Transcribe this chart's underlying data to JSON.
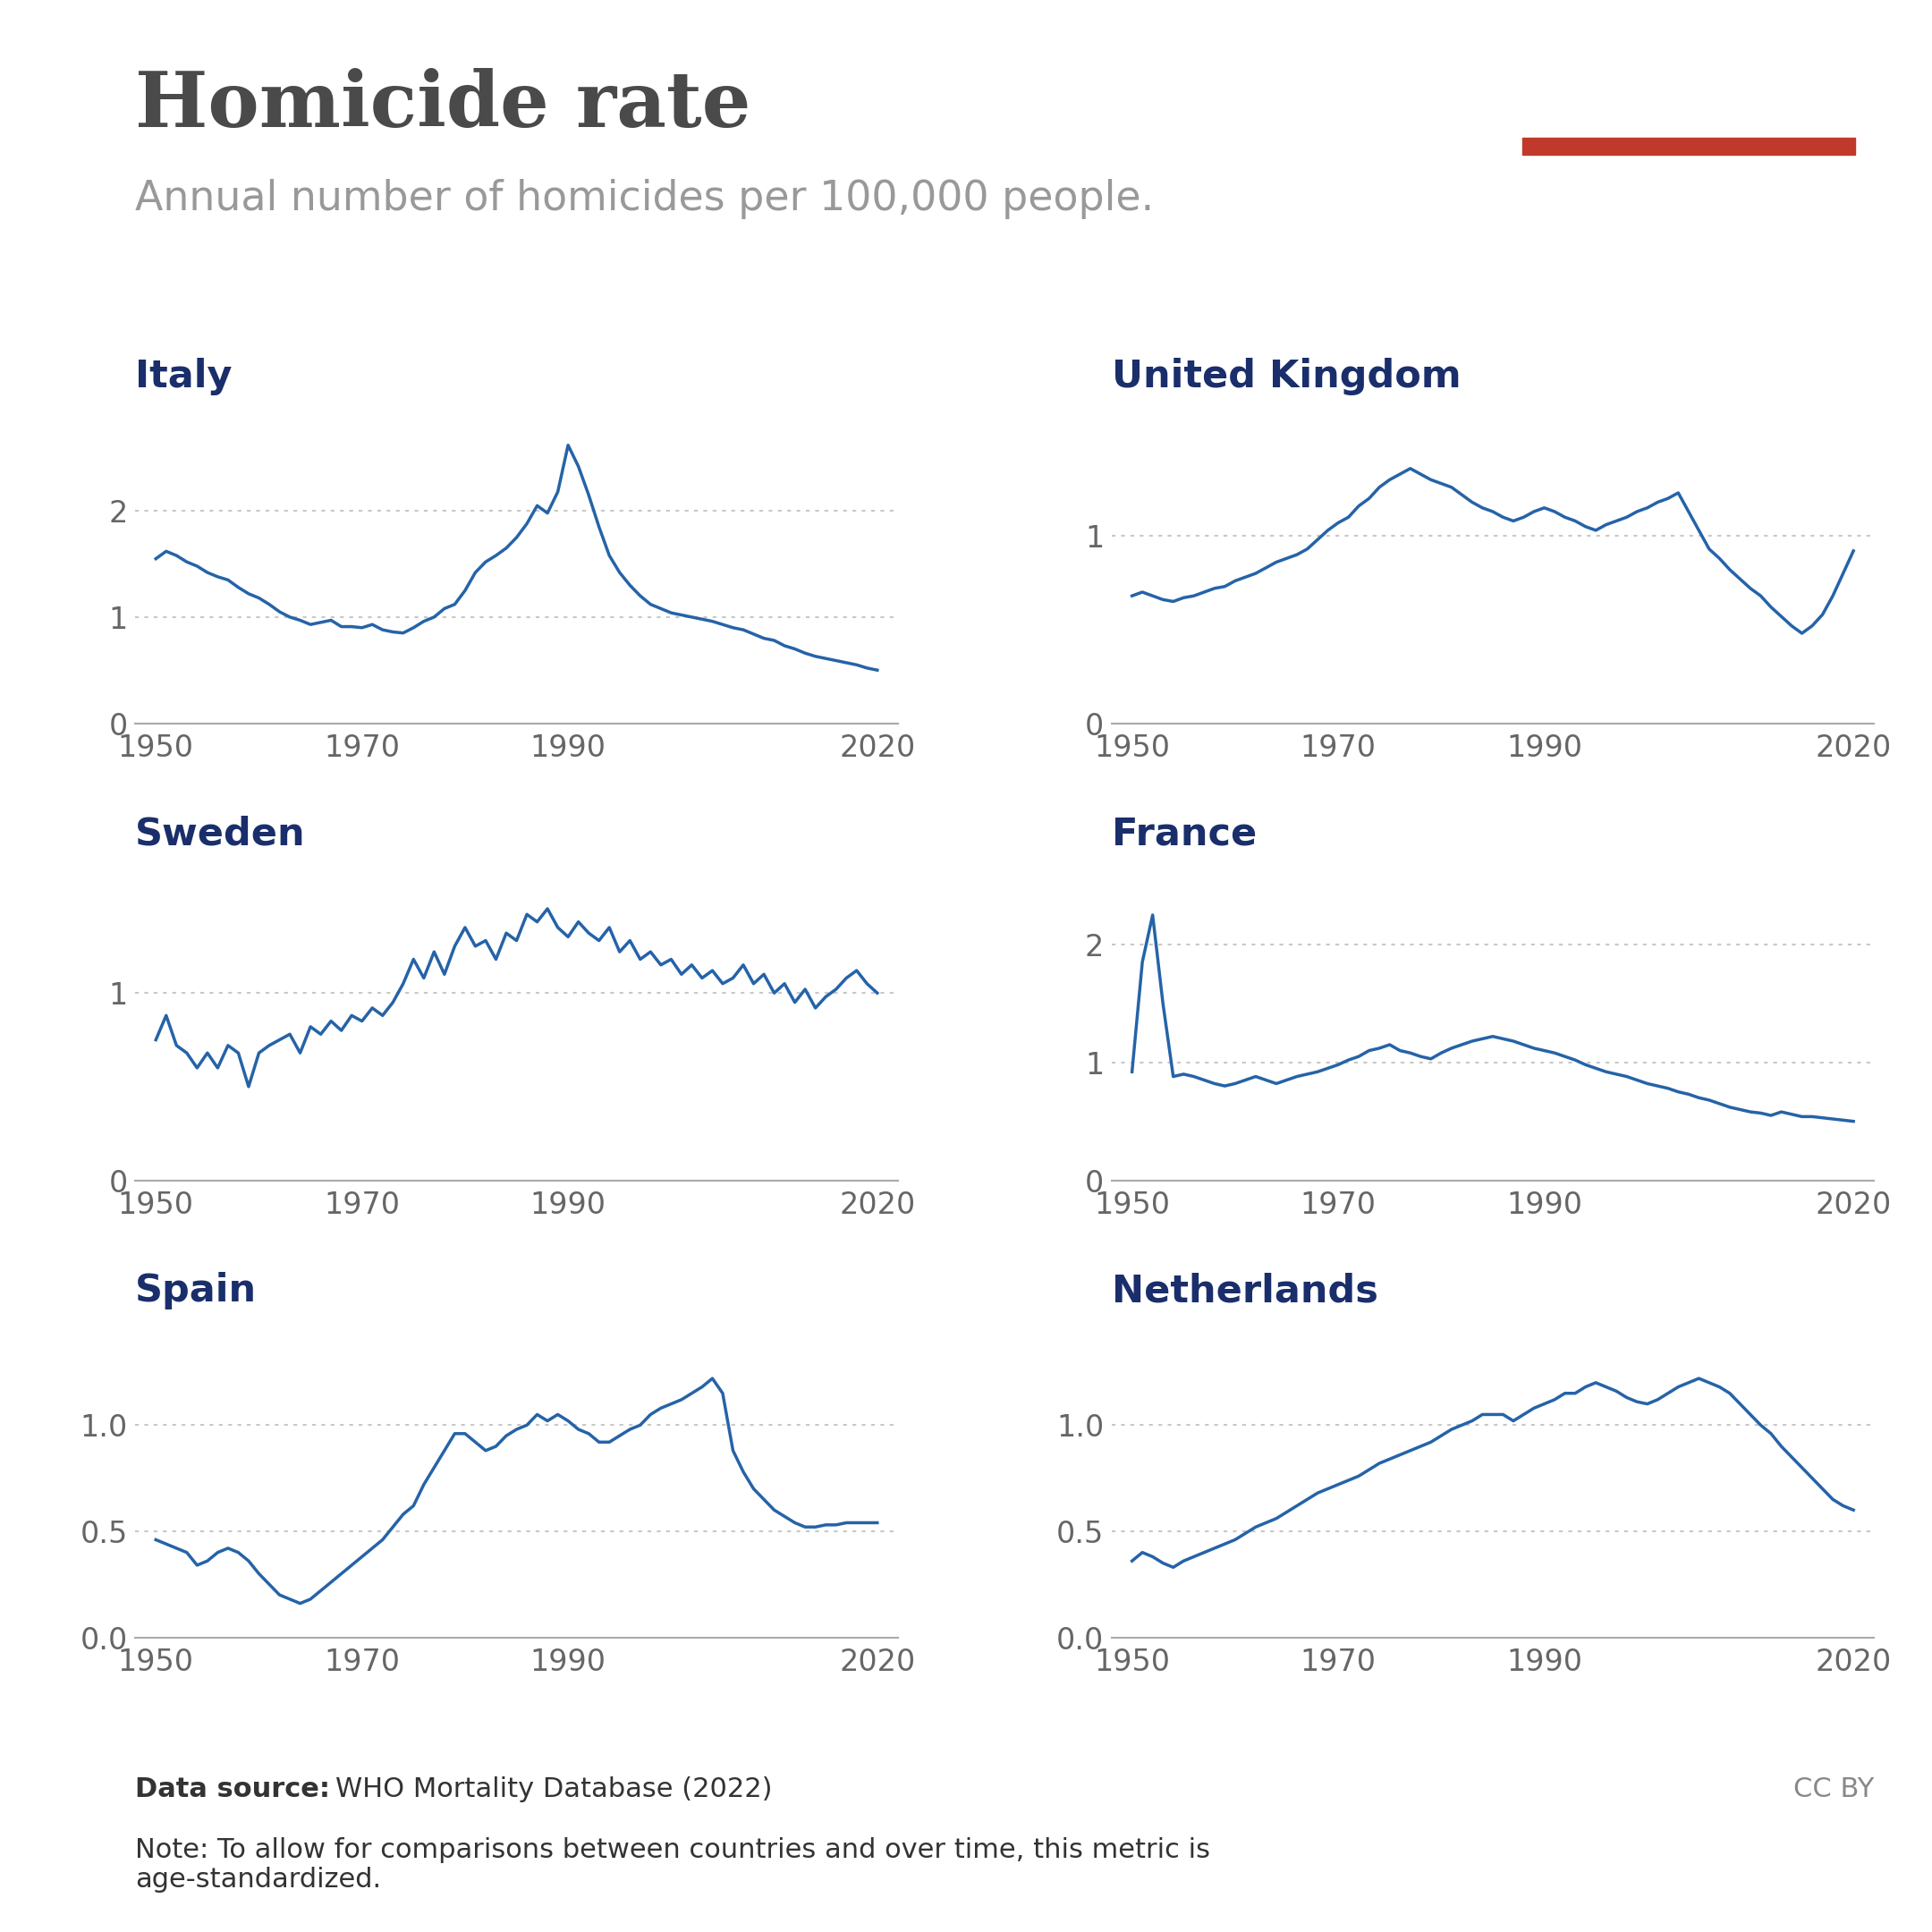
{
  "title": "Homicide rate",
  "subtitle": "Annual number of homicides per 100,000 people.",
  "line_color": "#2563a8",
  "background_color": "#ffffff",
  "axis_color": "#aaaaaa",
  "grid_color": "#c8c8c8",
  "title_color": "#4a4a4a",
  "subtitle_color": "#999999",
  "country_title_color": "#1a2e6b",
  "tick_color": "#666666",
  "footer_ds_bold": "Data source: ",
  "footer_ds_normal": "WHO Mortality Database (2022)",
  "note_text": "Note: To allow for comparisons between countries and over time, this metric is\nage-standardized.",
  "cc_text": "CC BY",
  "Italy": {
    "years": [
      1950,
      1951,
      1952,
      1953,
      1954,
      1955,
      1956,
      1957,
      1958,
      1959,
      1960,
      1961,
      1962,
      1963,
      1964,
      1965,
      1966,
      1967,
      1968,
      1969,
      1970,
      1971,
      1972,
      1973,
      1974,
      1975,
      1976,
      1977,
      1978,
      1979,
      1980,
      1981,
      1982,
      1983,
      1984,
      1985,
      1986,
      1987,
      1988,
      1989,
      1990,
      1991,
      1992,
      1993,
      1994,
      1995,
      1996,
      1997,
      1998,
      1999,
      2000,
      2001,
      2002,
      2003,
      2004,
      2005,
      2006,
      2007,
      2008,
      2009,
      2010,
      2011,
      2012,
      2013,
      2014,
      2015,
      2016,
      2017,
      2018,
      2019,
      2020
    ],
    "values": [
      1.55,
      1.62,
      1.58,
      1.52,
      1.48,
      1.42,
      1.38,
      1.35,
      1.28,
      1.22,
      1.18,
      1.12,
      1.05,
      1.0,
      0.97,
      0.93,
      0.95,
      0.97,
      0.91,
      0.91,
      0.9,
      0.93,
      0.88,
      0.86,
      0.85,
      0.9,
      0.96,
      1.0,
      1.08,
      1.12,
      1.25,
      1.42,
      1.52,
      1.58,
      1.65,
      1.75,
      1.88,
      2.05,
      1.98,
      2.18,
      2.62,
      2.42,
      2.15,
      1.85,
      1.58,
      1.42,
      1.3,
      1.2,
      1.12,
      1.08,
      1.04,
      1.02,
      1.0,
      0.98,
      0.96,
      0.93,
      0.9,
      0.88,
      0.84,
      0.8,
      0.78,
      0.73,
      0.7,
      0.66,
      0.63,
      0.61,
      0.59,
      0.57,
      0.55,
      0.52,
      0.5
    ],
    "yticks": [
      0,
      1,
      2
    ],
    "ylim": [
      0,
      3.0
    ]
  },
  "United Kingdom": {
    "years": [
      1950,
      1951,
      1952,
      1953,
      1954,
      1955,
      1956,
      1957,
      1958,
      1959,
      1960,
      1961,
      1962,
      1963,
      1964,
      1965,
      1966,
      1967,
      1968,
      1969,
      1970,
      1971,
      1972,
      1973,
      1974,
      1975,
      1976,
      1977,
      1978,
      1979,
      1980,
      1981,
      1982,
      1983,
      1984,
      1985,
      1986,
      1987,
      1988,
      1989,
      1990,
      1991,
      1992,
      1993,
      1994,
      1995,
      1996,
      1997,
      1998,
      1999,
      2000,
      2001,
      2002,
      2003,
      2004,
      2005,
      2006,
      2007,
      2008,
      2009,
      2010,
      2011,
      2012,
      2013,
      2014,
      2015,
      2016,
      2017,
      2018,
      2019,
      2020
    ],
    "values": [
      0.68,
      0.7,
      0.68,
      0.66,
      0.65,
      0.67,
      0.68,
      0.7,
      0.72,
      0.73,
      0.76,
      0.78,
      0.8,
      0.83,
      0.86,
      0.88,
      0.9,
      0.93,
      0.98,
      1.03,
      1.07,
      1.1,
      1.16,
      1.2,
      1.26,
      1.3,
      1.33,
      1.36,
      1.33,
      1.3,
      1.28,
      1.26,
      1.22,
      1.18,
      1.15,
      1.13,
      1.1,
      1.08,
      1.1,
      1.13,
      1.15,
      1.13,
      1.1,
      1.08,
      1.05,
      1.03,
      1.06,
      1.08,
      1.1,
      1.13,
      1.15,
      1.18,
      1.2,
      1.23,
      1.13,
      1.03,
      0.93,
      0.88,
      0.82,
      0.77,
      0.72,
      0.68,
      0.62,
      0.57,
      0.52,
      0.48,
      0.52,
      0.58,
      0.68,
      0.8,
      0.92
    ],
    "yticks": [
      0,
      1
    ],
    "ylim": [
      0,
      1.7
    ]
  },
  "Sweden": {
    "years": [
      1950,
      1951,
      1952,
      1953,
      1954,
      1955,
      1956,
      1957,
      1958,
      1959,
      1960,
      1961,
      1962,
      1963,
      1964,
      1965,
      1966,
      1967,
      1968,
      1969,
      1970,
      1971,
      1972,
      1973,
      1974,
      1975,
      1976,
      1977,
      1978,
      1979,
      1980,
      1981,
      1982,
      1983,
      1984,
      1985,
      1986,
      1987,
      1988,
      1989,
      1990,
      1991,
      1992,
      1993,
      1994,
      1995,
      1996,
      1997,
      1998,
      1999,
      2000,
      2001,
      2002,
      2003,
      2004,
      2005,
      2006,
      2007,
      2008,
      2009,
      2010,
      2011,
      2012,
      2013,
      2014,
      2015,
      2016,
      2017,
      2018,
      2019,
      2020
    ],
    "values": [
      0.75,
      0.88,
      0.72,
      0.68,
      0.6,
      0.68,
      0.6,
      0.72,
      0.68,
      0.5,
      0.68,
      0.72,
      0.75,
      0.78,
      0.68,
      0.82,
      0.78,
      0.85,
      0.8,
      0.88,
      0.85,
      0.92,
      0.88,
      0.95,
      1.05,
      1.18,
      1.08,
      1.22,
      1.1,
      1.25,
      1.35,
      1.25,
      1.28,
      1.18,
      1.32,
      1.28,
      1.42,
      1.38,
      1.45,
      1.35,
      1.3,
      1.38,
      1.32,
      1.28,
      1.35,
      1.22,
      1.28,
      1.18,
      1.22,
      1.15,
      1.18,
      1.1,
      1.15,
      1.08,
      1.12,
      1.05,
      1.08,
      1.15,
      1.05,
      1.1,
      1.0,
      1.05,
      0.95,
      1.02,
      0.92,
      0.98,
      1.02,
      1.08,
      1.12,
      1.05,
      1.0
    ],
    "yticks": [
      0,
      1
    ],
    "ylim": [
      0,
      1.7
    ]
  },
  "France": {
    "years": [
      1950,
      1951,
      1952,
      1953,
      1954,
      1955,
      1956,
      1957,
      1958,
      1959,
      1960,
      1961,
      1962,
      1963,
      1964,
      1965,
      1966,
      1967,
      1968,
      1969,
      1970,
      1971,
      1972,
      1973,
      1974,
      1975,
      1976,
      1977,
      1978,
      1979,
      1980,
      1981,
      1982,
      1983,
      1984,
      1985,
      1986,
      1987,
      1988,
      1989,
      1990,
      1991,
      1992,
      1993,
      1994,
      1995,
      1996,
      1997,
      1998,
      1999,
      2000,
      2001,
      2002,
      2003,
      2004,
      2005,
      2006,
      2007,
      2008,
      2009,
      2010,
      2011,
      2012,
      2013,
      2014,
      2015,
      2016,
      2017,
      2018,
      2019,
      2020
    ],
    "values": [
      0.92,
      1.85,
      2.25,
      1.5,
      0.88,
      0.9,
      0.88,
      0.85,
      0.82,
      0.8,
      0.82,
      0.85,
      0.88,
      0.85,
      0.82,
      0.85,
      0.88,
      0.9,
      0.92,
      0.95,
      0.98,
      1.02,
      1.05,
      1.1,
      1.12,
      1.15,
      1.1,
      1.08,
      1.05,
      1.03,
      1.08,
      1.12,
      1.15,
      1.18,
      1.2,
      1.22,
      1.2,
      1.18,
      1.15,
      1.12,
      1.1,
      1.08,
      1.05,
      1.02,
      0.98,
      0.95,
      0.92,
      0.9,
      0.88,
      0.85,
      0.82,
      0.8,
      0.78,
      0.75,
      0.73,
      0.7,
      0.68,
      0.65,
      0.62,
      0.6,
      0.58,
      0.57,
      0.55,
      0.58,
      0.56,
      0.54,
      0.54,
      0.53,
      0.52,
      0.51,
      0.5
    ],
    "yticks": [
      0,
      1,
      2
    ],
    "ylim": [
      0,
      2.7
    ]
  },
  "Spain": {
    "years": [
      1950,
      1951,
      1952,
      1953,
      1954,
      1955,
      1956,
      1957,
      1958,
      1959,
      1960,
      1961,
      1962,
      1963,
      1964,
      1965,
      1966,
      1967,
      1968,
      1969,
      1970,
      1971,
      1972,
      1973,
      1974,
      1975,
      1976,
      1977,
      1978,
      1979,
      1980,
      1981,
      1982,
      1983,
      1984,
      1985,
      1986,
      1987,
      1988,
      1989,
      1990,
      1991,
      1992,
      1993,
      1994,
      1995,
      1996,
      1997,
      1998,
      1999,
      2000,
      2001,
      2002,
      2003,
      2004,
      2005,
      2006,
      2007,
      2008,
      2009,
      2010,
      2011,
      2012,
      2013,
      2014,
      2015,
      2016,
      2017,
      2018,
      2019,
      2020
    ],
    "values": [
      0.46,
      0.44,
      0.42,
      0.4,
      0.34,
      0.36,
      0.4,
      0.42,
      0.4,
      0.36,
      0.3,
      0.25,
      0.2,
      0.18,
      0.16,
      0.18,
      0.22,
      0.26,
      0.3,
      0.34,
      0.38,
      0.42,
      0.46,
      0.52,
      0.58,
      0.62,
      0.72,
      0.8,
      0.88,
      0.96,
      0.96,
      0.92,
      0.88,
      0.9,
      0.95,
      0.98,
      1.0,
      1.05,
      1.02,
      1.05,
      1.02,
      0.98,
      0.96,
      0.92,
      0.92,
      0.95,
      0.98,
      1.0,
      1.05,
      1.08,
      1.1,
      1.12,
      1.15,
      1.18,
      1.22,
      1.15,
      0.88,
      0.78,
      0.7,
      0.65,
      0.6,
      0.57,
      0.54,
      0.52,
      0.52,
      0.53,
      0.53,
      0.54,
      0.54,
      0.54,
      0.54
    ],
    "yticks": [
      0,
      0.5,
      1
    ],
    "ylim": [
      0,
      1.5
    ]
  },
  "Netherlands": {
    "years": [
      1950,
      1951,
      1952,
      1953,
      1954,
      1955,
      1956,
      1957,
      1958,
      1959,
      1960,
      1961,
      1962,
      1963,
      1964,
      1965,
      1966,
      1967,
      1968,
      1969,
      1970,
      1971,
      1972,
      1973,
      1974,
      1975,
      1976,
      1977,
      1978,
      1979,
      1980,
      1981,
      1982,
      1983,
      1984,
      1985,
      1986,
      1987,
      1988,
      1989,
      1990,
      1991,
      1992,
      1993,
      1994,
      1995,
      1996,
      1997,
      1998,
      1999,
      2000,
      2001,
      2002,
      2003,
      2004,
      2005,
      2006,
      2007,
      2008,
      2009,
      2010,
      2011,
      2012,
      2013,
      2014,
      2015,
      2016,
      2017,
      2018,
      2019,
      2020
    ],
    "values": [
      0.36,
      0.4,
      0.38,
      0.35,
      0.33,
      0.36,
      0.38,
      0.4,
      0.42,
      0.44,
      0.46,
      0.49,
      0.52,
      0.54,
      0.56,
      0.59,
      0.62,
      0.65,
      0.68,
      0.7,
      0.72,
      0.74,
      0.76,
      0.79,
      0.82,
      0.84,
      0.86,
      0.88,
      0.9,
      0.92,
      0.95,
      0.98,
      1.0,
      1.02,
      1.05,
      1.05,
      1.05,
      1.02,
      1.05,
      1.08,
      1.1,
      1.12,
      1.15,
      1.15,
      1.18,
      1.2,
      1.18,
      1.16,
      1.13,
      1.11,
      1.1,
      1.12,
      1.15,
      1.18,
      1.2,
      1.22,
      1.2,
      1.18,
      1.15,
      1.1,
      1.05,
      1.0,
      0.96,
      0.9,
      0.85,
      0.8,
      0.75,
      0.7,
      0.65,
      0.62,
      0.6
    ],
    "yticks": [
      0,
      0.5,
      1
    ],
    "ylim": [
      0,
      1.5
    ]
  },
  "layout_order": [
    "Italy",
    "United Kingdom",
    "Sweden",
    "France",
    "Spain",
    "Netherlands"
  ]
}
